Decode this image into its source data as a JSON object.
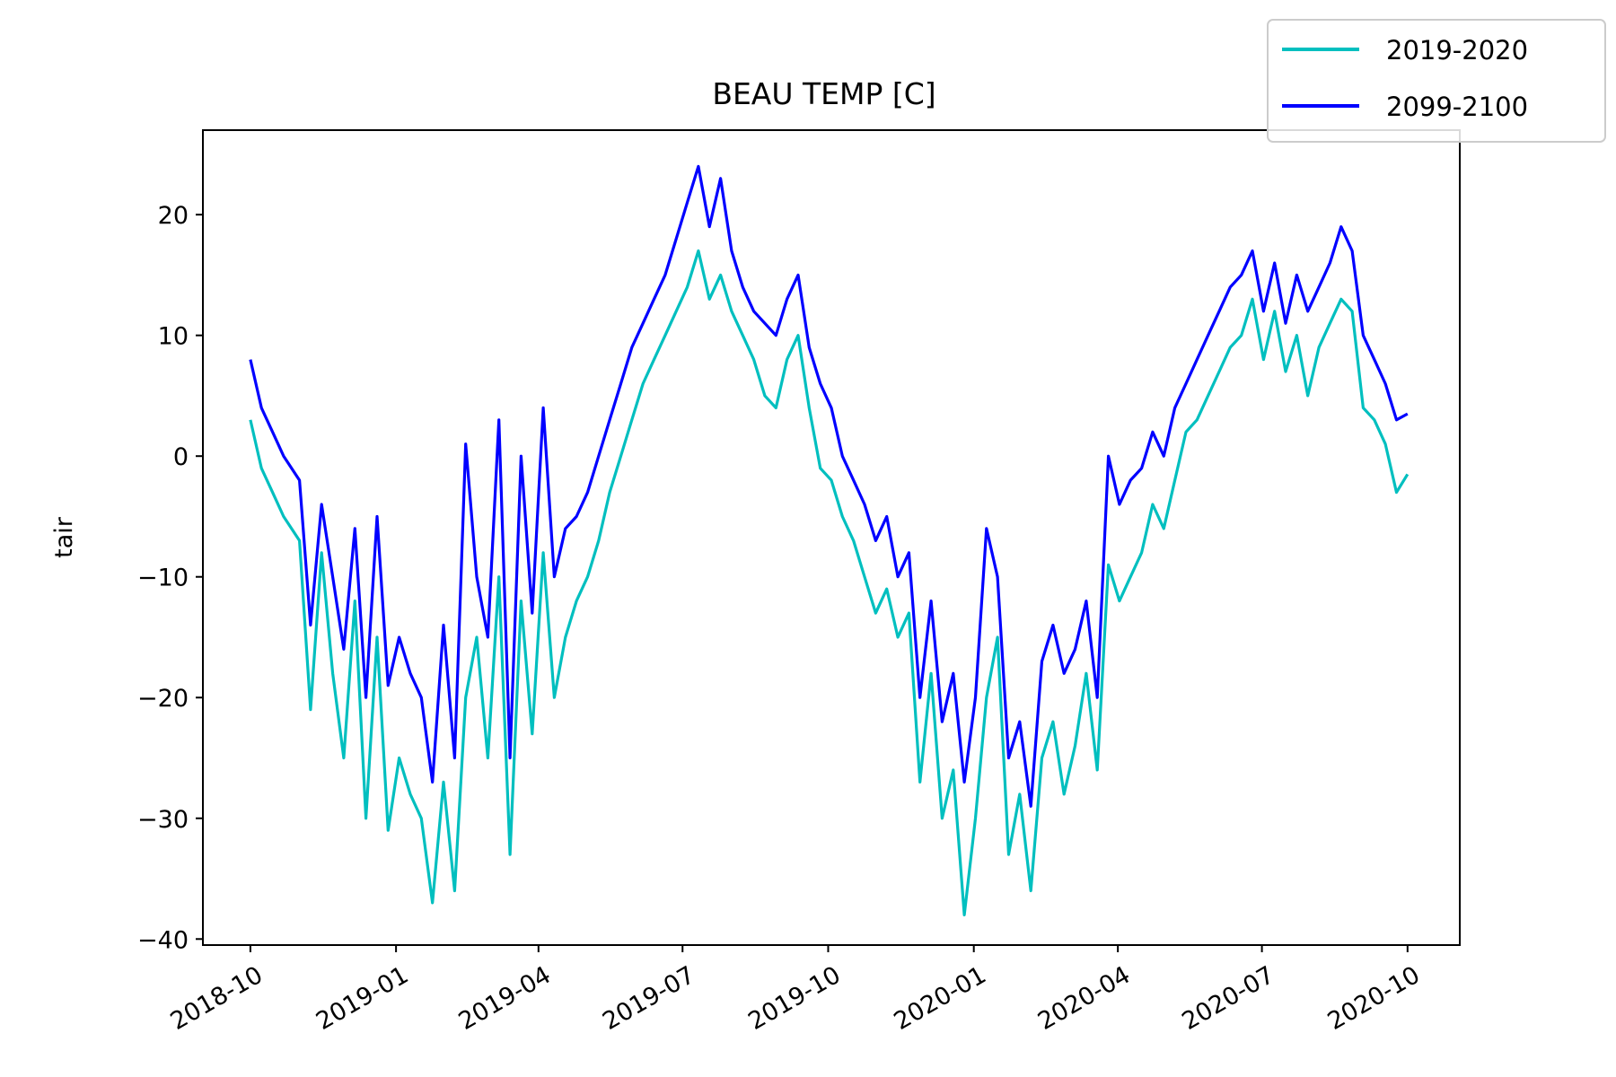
{
  "chart_data": {
    "type": "line",
    "title": "BEAU TEMP [C]",
    "xlabel": "",
    "ylabel": "tair",
    "xlim": [
      "2018-09-01",
      "2020-11-03"
    ],
    "ylim": [
      -40.5,
      27
    ],
    "x_ticks": [
      "2018-10",
      "2019-01",
      "2019-04",
      "2019-07",
      "2019-10",
      "2020-01",
      "2020-04",
      "2020-07",
      "2020-10"
    ],
    "y_ticks": [
      20,
      10,
      0,
      -10,
      -20,
      -30,
      -40
    ],
    "y_tick_labels": [
      "20",
      "10",
      "0",
      "−10",
      "−20",
      "−30",
      "−40"
    ],
    "legend_position": "top-right",
    "grid": false,
    "series": [
      {
        "name": "2019-2020",
        "color": "#00bfbf",
        "points": [
          [
            "2018-10-01",
            3
          ],
          [
            "2018-10-08",
            -1
          ],
          [
            "2018-10-15",
            -3
          ],
          [
            "2018-10-22",
            -5
          ],
          [
            "2018-11-01",
            -7
          ],
          [
            "2018-11-08",
            -21
          ],
          [
            "2018-11-15",
            -8
          ],
          [
            "2018-11-22",
            -18
          ],
          [
            "2018-11-29",
            -25
          ],
          [
            "2018-12-06",
            -12
          ],
          [
            "2018-12-13",
            -30
          ],
          [
            "2018-12-20",
            -15
          ],
          [
            "2018-12-27",
            -31
          ],
          [
            "2019-01-03",
            -25
          ],
          [
            "2019-01-10",
            -28
          ],
          [
            "2019-01-17",
            -30
          ],
          [
            "2019-01-24",
            -37
          ],
          [
            "2019-01-31",
            -27
          ],
          [
            "2019-02-07",
            -36
          ],
          [
            "2019-02-14",
            -20
          ],
          [
            "2019-02-21",
            -15
          ],
          [
            "2019-02-28",
            -25
          ],
          [
            "2019-03-07",
            -10
          ],
          [
            "2019-03-14",
            -33
          ],
          [
            "2019-03-21",
            -12
          ],
          [
            "2019-03-28",
            -23
          ],
          [
            "2019-04-04",
            -8
          ],
          [
            "2019-04-11",
            -20
          ],
          [
            "2019-04-18",
            -15
          ],
          [
            "2019-04-25",
            -12
          ],
          [
            "2019-05-02",
            -10
          ],
          [
            "2019-05-09",
            -7
          ],
          [
            "2019-05-16",
            -3
          ],
          [
            "2019-05-23",
            0
          ],
          [
            "2019-05-30",
            3
          ],
          [
            "2019-06-06",
            6
          ],
          [
            "2019-06-13",
            8
          ],
          [
            "2019-06-20",
            10
          ],
          [
            "2019-06-27",
            12
          ],
          [
            "2019-07-04",
            14
          ],
          [
            "2019-07-11",
            17
          ],
          [
            "2019-07-18",
            13
          ],
          [
            "2019-07-25",
            15
          ],
          [
            "2019-08-01",
            12
          ],
          [
            "2019-08-08",
            10
          ],
          [
            "2019-08-15",
            8
          ],
          [
            "2019-08-22",
            5
          ],
          [
            "2019-08-29",
            4
          ],
          [
            "2019-09-05",
            8
          ],
          [
            "2019-09-12",
            10
          ],
          [
            "2019-09-19",
            4
          ],
          [
            "2019-09-26",
            -1
          ],
          [
            "2019-10-03",
            -2
          ],
          [
            "2019-10-10",
            -5
          ],
          [
            "2019-10-17",
            -7
          ],
          [
            "2019-10-24",
            -10
          ],
          [
            "2019-10-31",
            -13
          ],
          [
            "2019-11-07",
            -11
          ],
          [
            "2019-11-14",
            -15
          ],
          [
            "2019-11-21",
            -13
          ],
          [
            "2019-11-28",
            -27
          ],
          [
            "2019-12-05",
            -18
          ],
          [
            "2019-12-12",
            -30
          ],
          [
            "2019-12-19",
            -26
          ],
          [
            "2019-12-26",
            -38
          ],
          [
            "2020-01-02",
            -30
          ],
          [
            "2020-01-09",
            -20
          ],
          [
            "2020-01-16",
            -15
          ],
          [
            "2020-01-23",
            -33
          ],
          [
            "2020-01-30",
            -28
          ],
          [
            "2020-02-06",
            -36
          ],
          [
            "2020-02-13",
            -25
          ],
          [
            "2020-02-20",
            -22
          ],
          [
            "2020-02-27",
            -28
          ],
          [
            "2020-03-05",
            -24
          ],
          [
            "2020-03-12",
            -18
          ],
          [
            "2020-03-19",
            -26
          ],
          [
            "2020-03-26",
            -9
          ],
          [
            "2020-04-02",
            -12
          ],
          [
            "2020-04-09",
            -10
          ],
          [
            "2020-04-16",
            -8
          ],
          [
            "2020-04-23",
            -4
          ],
          [
            "2020-04-30",
            -6
          ],
          [
            "2020-05-07",
            -2
          ],
          [
            "2020-05-14",
            2
          ],
          [
            "2020-05-21",
            3
          ],
          [
            "2020-05-28",
            5
          ],
          [
            "2020-06-04",
            7
          ],
          [
            "2020-06-11",
            9
          ],
          [
            "2020-06-18",
            10
          ],
          [
            "2020-06-25",
            13
          ],
          [
            "2020-07-02",
            8
          ],
          [
            "2020-07-09",
            12
          ],
          [
            "2020-07-16",
            7
          ],
          [
            "2020-07-23",
            10
          ],
          [
            "2020-07-30",
            5
          ],
          [
            "2020-08-06",
            9
          ],
          [
            "2020-08-13",
            11
          ],
          [
            "2020-08-20",
            13
          ],
          [
            "2020-08-27",
            12
          ],
          [
            "2020-09-03",
            4
          ],
          [
            "2020-09-10",
            3
          ],
          [
            "2020-09-17",
            1
          ],
          [
            "2020-09-24",
            -3
          ],
          [
            "2020-10-01",
            -1.5
          ]
        ]
      },
      {
        "name": "2099-2100",
        "color": "#0000ff",
        "points": [
          [
            "2018-10-01",
            8
          ],
          [
            "2018-10-08",
            4
          ],
          [
            "2018-10-15",
            2
          ],
          [
            "2018-10-22",
            0
          ],
          [
            "2018-11-01",
            -2
          ],
          [
            "2018-11-08",
            -14
          ],
          [
            "2018-11-15",
            -4
          ],
          [
            "2018-11-22",
            -10
          ],
          [
            "2018-11-29",
            -16
          ],
          [
            "2018-12-06",
            -6
          ],
          [
            "2018-12-13",
            -20
          ],
          [
            "2018-12-20",
            -5
          ],
          [
            "2018-12-27",
            -19
          ],
          [
            "2019-01-03",
            -15
          ],
          [
            "2019-01-10",
            -18
          ],
          [
            "2019-01-17",
            -20
          ],
          [
            "2019-01-24",
            -27
          ],
          [
            "2019-01-31",
            -14
          ],
          [
            "2019-02-07",
            -25
          ],
          [
            "2019-02-14",
            1
          ],
          [
            "2019-02-21",
            -10
          ],
          [
            "2019-02-28",
            -15
          ],
          [
            "2019-03-07",
            3
          ],
          [
            "2019-03-14",
            -25
          ],
          [
            "2019-03-21",
            0
          ],
          [
            "2019-03-28",
            -13
          ],
          [
            "2019-04-04",
            4
          ],
          [
            "2019-04-11",
            -10
          ],
          [
            "2019-04-18",
            -6
          ],
          [
            "2019-04-25",
            -5
          ],
          [
            "2019-05-02",
            -3
          ],
          [
            "2019-05-09",
            0
          ],
          [
            "2019-05-16",
            3
          ],
          [
            "2019-05-23",
            6
          ],
          [
            "2019-05-30",
            9
          ],
          [
            "2019-06-06",
            11
          ],
          [
            "2019-06-13",
            13
          ],
          [
            "2019-06-20",
            15
          ],
          [
            "2019-06-27",
            18
          ],
          [
            "2019-07-04",
            21
          ],
          [
            "2019-07-11",
            24
          ],
          [
            "2019-07-18",
            19
          ],
          [
            "2019-07-25",
            23
          ],
          [
            "2019-08-01",
            17
          ],
          [
            "2019-08-08",
            14
          ],
          [
            "2019-08-15",
            12
          ],
          [
            "2019-08-22",
            11
          ],
          [
            "2019-08-29",
            10
          ],
          [
            "2019-09-05",
            13
          ],
          [
            "2019-09-12",
            15
          ],
          [
            "2019-09-19",
            9
          ],
          [
            "2019-09-26",
            6
          ],
          [
            "2019-10-03",
            4
          ],
          [
            "2019-10-10",
            0
          ],
          [
            "2019-10-17",
            -2
          ],
          [
            "2019-10-24",
            -4
          ],
          [
            "2019-10-31",
            -7
          ],
          [
            "2019-11-07",
            -5
          ],
          [
            "2019-11-14",
            -10
          ],
          [
            "2019-11-21",
            -8
          ],
          [
            "2019-11-28",
            -20
          ],
          [
            "2019-12-05",
            -12
          ],
          [
            "2019-12-12",
            -22
          ],
          [
            "2019-12-19",
            -18
          ],
          [
            "2019-12-26",
            -27
          ],
          [
            "2020-01-02",
            -20
          ],
          [
            "2020-01-09",
            -6
          ],
          [
            "2020-01-16",
            -10
          ],
          [
            "2020-01-23",
            -25
          ],
          [
            "2020-01-30",
            -22
          ],
          [
            "2020-02-06",
            -29
          ],
          [
            "2020-02-13",
            -17
          ],
          [
            "2020-02-20",
            -14
          ],
          [
            "2020-02-27",
            -18
          ],
          [
            "2020-03-05",
            -16
          ],
          [
            "2020-03-12",
            -12
          ],
          [
            "2020-03-19",
            -20
          ],
          [
            "2020-03-26",
            0
          ],
          [
            "2020-04-02",
            -4
          ],
          [
            "2020-04-09",
            -2
          ],
          [
            "2020-04-16",
            -1
          ],
          [
            "2020-04-23",
            2
          ],
          [
            "2020-04-30",
            0
          ],
          [
            "2020-05-07",
            4
          ],
          [
            "2020-05-14",
            6
          ],
          [
            "2020-05-21",
            8
          ],
          [
            "2020-05-28",
            10
          ],
          [
            "2020-06-04",
            12
          ],
          [
            "2020-06-11",
            14
          ],
          [
            "2020-06-18",
            15
          ],
          [
            "2020-06-25",
            17
          ],
          [
            "2020-07-02",
            12
          ],
          [
            "2020-07-09",
            16
          ],
          [
            "2020-07-16",
            11
          ],
          [
            "2020-07-23",
            15
          ],
          [
            "2020-07-30",
            12
          ],
          [
            "2020-08-06",
            14
          ],
          [
            "2020-08-13",
            16
          ],
          [
            "2020-08-20",
            19
          ],
          [
            "2020-08-27",
            17
          ],
          [
            "2020-09-03",
            10
          ],
          [
            "2020-09-10",
            8
          ],
          [
            "2020-09-17",
            6
          ],
          [
            "2020-09-24",
            3
          ],
          [
            "2020-10-01",
            3.5
          ]
        ]
      }
    ]
  }
}
